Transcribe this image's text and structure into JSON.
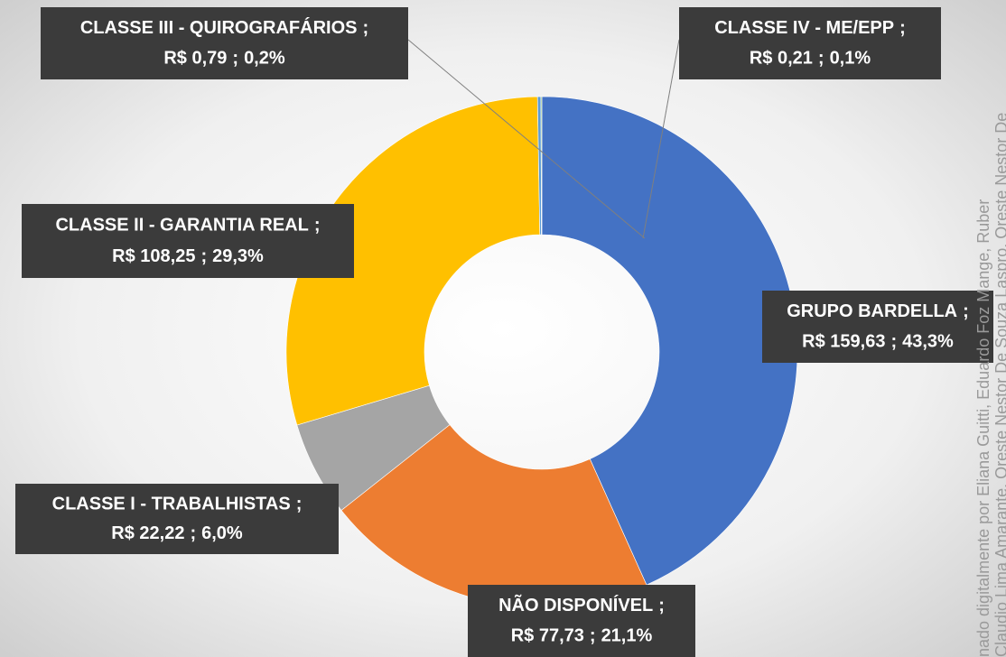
{
  "chart_data": {
    "type": "donut",
    "categories": [
      "GRUPO BARDELLA",
      "NÃO DISPONÍVEL",
      "CLASSE I - TRABALHISTAS",
      "CLASSE II - GARANTIA REAL",
      "CLASSE III - QUIROGRAFÁRIOS",
      "CLASSE IV - ME/EPP"
    ],
    "values": [
      159.63,
      77.73,
      22.22,
      108.25,
      0.79,
      0.21
    ],
    "value_labels": [
      "R$ 159,63",
      "R$ 77,73",
      "R$ 22,22",
      "R$ 108,25",
      "R$ 0,79",
      "R$ 0,21"
    ],
    "percents": [
      43.3,
      21.1,
      6.0,
      29.3,
      0.2,
      0.1
    ],
    "percent_labels": [
      "43,3%",
      "21,1%",
      "6,0%",
      "29,3%",
      "0,2%",
      "0,1%"
    ],
    "separator": ";",
    "colors": [
      "#4472c4",
      "#ed7d31",
      "#a5a5a5",
      "#ffc000",
      "#5b9bd5",
      "#70ad47"
    ]
  },
  "watermark": [
    "nado digitalmente por Eliana Guitti, Eduardo Foz Mange, Ruber",
    "Claudio Lima Amarante, Oreste Nestor De Souza Laspro, Oreste Nestor De"
  ]
}
